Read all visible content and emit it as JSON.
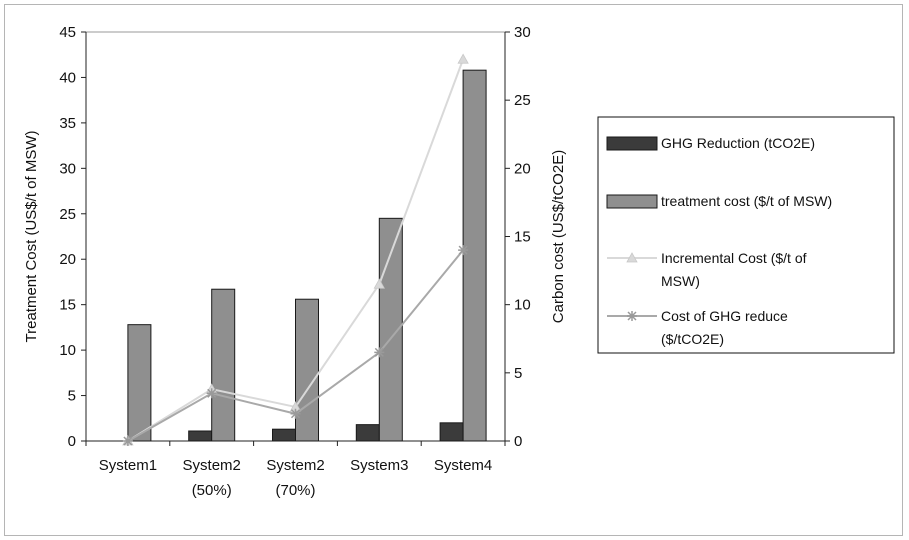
{
  "chart_data": {
    "type": "bar",
    "categories": [
      [
        "System1"
      ],
      [
        "System2",
        "(50%)"
      ],
      [
        "System2",
        "(70%)"
      ],
      [
        "System3"
      ],
      [
        "System4"
      ]
    ],
    "y_left": {
      "label": "Treatment Cost (US$/t of MSW)",
      "range": [
        0,
        45
      ],
      "ticks": [
        0,
        5,
        10,
        15,
        20,
        25,
        30,
        35,
        40,
        45
      ]
    },
    "y_right": {
      "label": "Carbon cost (US$/tCO2E)",
      "range": [
        0,
        30
      ],
      "ticks": [
        0,
        5,
        10,
        15,
        20,
        25,
        30
      ]
    },
    "grid": false,
    "legend_position": "right",
    "series": [
      {
        "name": "GHG Reduction (tCO2E)",
        "kind": "bar",
        "axis": "left",
        "color": "#3b3b3b",
        "values": [
          0,
          1.1,
          1.3,
          1.8,
          2.0
        ]
      },
      {
        "name": "treatment cost ($/t of MSW)",
        "kind": "bar",
        "axis": "left",
        "color": "#8f8f8f",
        "values": [
          12.8,
          16.7,
          15.6,
          24.5,
          40.8
        ]
      },
      {
        "name": "Incremental Cost ($/t of MSW)",
        "kind": "line",
        "axis": "right",
        "color": "#d9d9d9",
        "values": [
          0,
          3.8,
          2.5,
          11.5,
          28.0
        ]
      },
      {
        "name": "Cost of GHG reduce ($/tCO2E)",
        "kind": "line",
        "axis": "right",
        "color": "#a9a9a9",
        "values": [
          0,
          3.5,
          2.0,
          6.5,
          14.0
        ]
      }
    ],
    "legend": [
      [
        "GHG Reduction (tCO2E)"
      ],
      [
        "treatment cost ($/t of MSW)"
      ],
      [
        "Incremental Cost ($/t of",
        "MSW)"
      ],
      [
        "Cost of GHG reduce",
        "($/tCO2E)"
      ]
    ]
  }
}
